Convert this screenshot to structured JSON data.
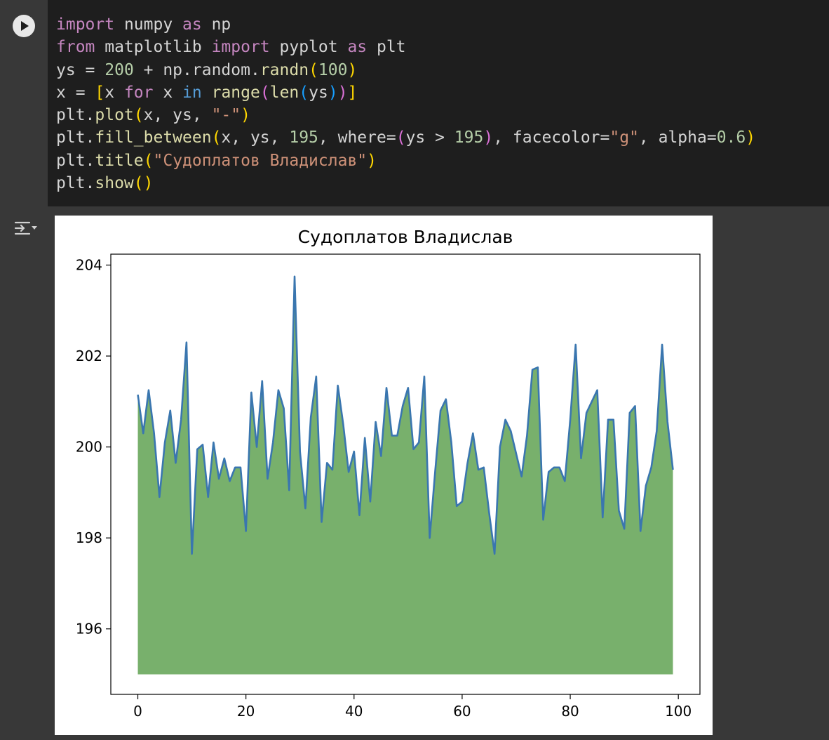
{
  "notebook": {
    "run_button_label": "Run cell",
    "code_lines": [
      [
        {
          "t": "import",
          "c": "kw"
        },
        {
          "t": " numpy "
        },
        {
          "t": "as",
          "c": "kw"
        },
        {
          "t": " np"
        }
      ],
      [
        {
          "t": "from",
          "c": "kw"
        },
        {
          "t": " matplotlib "
        },
        {
          "t": "import",
          "c": "kw"
        },
        {
          "t": " pyplot "
        },
        {
          "t": "as",
          "c": "kw"
        },
        {
          "t": " plt"
        }
      ],
      [
        {
          "t": "ys = "
        },
        {
          "t": "200",
          "c": "num"
        },
        {
          "t": " + np.random."
        },
        {
          "t": "randn",
          "c": "fn"
        },
        {
          "t": "(",
          "c": "p1"
        },
        {
          "t": "100",
          "c": "num"
        },
        {
          "t": ")",
          "c": "p1"
        }
      ],
      [
        {
          "t": "x = "
        },
        {
          "t": "[",
          "c": "p1"
        },
        {
          "t": "x "
        },
        {
          "t": "for",
          "c": "kw"
        },
        {
          "t": " x "
        },
        {
          "t": "in",
          "c": "kw2"
        },
        {
          "t": " "
        },
        {
          "t": "range",
          "c": "fn"
        },
        {
          "t": "(",
          "c": "p2"
        },
        {
          "t": "len",
          "c": "fn"
        },
        {
          "t": "(",
          "c": "p3"
        },
        {
          "t": "ys"
        },
        {
          "t": ")",
          "c": "p3"
        },
        {
          "t": ")",
          "c": "p2"
        },
        {
          "t": "]",
          "c": "p1"
        }
      ],
      [
        {
          "t": "plt."
        },
        {
          "t": "plot",
          "c": "fn"
        },
        {
          "t": "(",
          "c": "p1"
        },
        {
          "t": "x, ys, "
        },
        {
          "t": "\"-\"",
          "c": "str"
        },
        {
          "t": ")",
          "c": "p1"
        }
      ],
      [
        {
          "t": "plt."
        },
        {
          "t": "fill_between",
          "c": "fn"
        },
        {
          "t": "(",
          "c": "p1"
        },
        {
          "t": "x, ys, "
        },
        {
          "t": "195",
          "c": "num"
        },
        {
          "t": ", where="
        },
        {
          "t": "(",
          "c": "p2"
        },
        {
          "t": "ys > "
        },
        {
          "t": "195",
          "c": "num"
        },
        {
          "t": ")",
          "c": "p2"
        },
        {
          "t": ", facecolor="
        },
        {
          "t": "\"g\"",
          "c": "str"
        },
        {
          "t": ", alpha="
        },
        {
          "t": "0.6",
          "c": "num"
        },
        {
          "t": ")",
          "c": "p1"
        }
      ],
      [
        {
          "t": "plt."
        },
        {
          "t": "title",
          "c": "fn"
        },
        {
          "t": "(",
          "c": "p1"
        },
        {
          "t": "\"Судоплатов Владислав\"",
          "c": "str"
        },
        {
          "t": ")",
          "c": "p1"
        }
      ],
      [
        {
          "t": "plt."
        },
        {
          "t": "show",
          "c": "fn"
        },
        {
          "t": "()",
          "c": "p1"
        }
      ]
    ]
  },
  "chart_data": {
    "type": "area",
    "title": "Судоплатов Владислав",
    "xlabel": "",
    "ylabel": "",
    "xlim": [
      -5,
      104
    ],
    "ylim": [
      194.56,
      204.24
    ],
    "x_ticks": [
      0,
      20,
      40,
      60,
      80,
      100
    ],
    "y_ticks": [
      196,
      198,
      200,
      202,
      204
    ],
    "fill_baseline": 195,
    "grid": false,
    "line_color": "#3a76af",
    "fill_color": "#78b06c",
    "y": [
      201.15,
      200.3,
      201.25,
      200.3,
      198.9,
      200.1,
      200.8,
      199.65,
      200.6,
      202.3,
      197.65,
      199.95,
      200.05,
      198.9,
      200.1,
      199.3,
      199.75,
      199.25,
      199.55,
      199.55,
      198.15,
      201.2,
      200.0,
      201.45,
      199.3,
      200.1,
      201.25,
      200.85,
      199.05,
      203.75,
      199.9,
      198.65,
      200.65,
      201.55,
      198.35,
      199.65,
      199.5,
      201.35,
      200.5,
      199.45,
      199.9,
      198.5,
      200.2,
      198.8,
      200.55,
      199.8,
      201.3,
      200.25,
      200.25,
      200.9,
      201.3,
      199.95,
      200.1,
      201.55,
      198.0,
      199.45,
      200.8,
      201.05,
      200.1,
      198.7,
      198.8,
      199.65,
      200.3,
      199.5,
      199.55,
      198.55,
      197.65,
      200.0,
      200.6,
      200.35,
      199.85,
      199.35,
      200.25,
      201.7,
      201.75,
      198.4,
      199.45,
      199.55,
      199.55,
      199.25,
      200.6,
      202.25,
      199.75,
      200.75,
      201.0,
      201.25,
      198.45,
      200.6,
      200.6,
      198.6,
      198.2,
      200.75,
      200.9,
      198.15,
      199.15,
      199.55,
      200.35,
      202.25,
      200.55,
      199.5
    ]
  }
}
